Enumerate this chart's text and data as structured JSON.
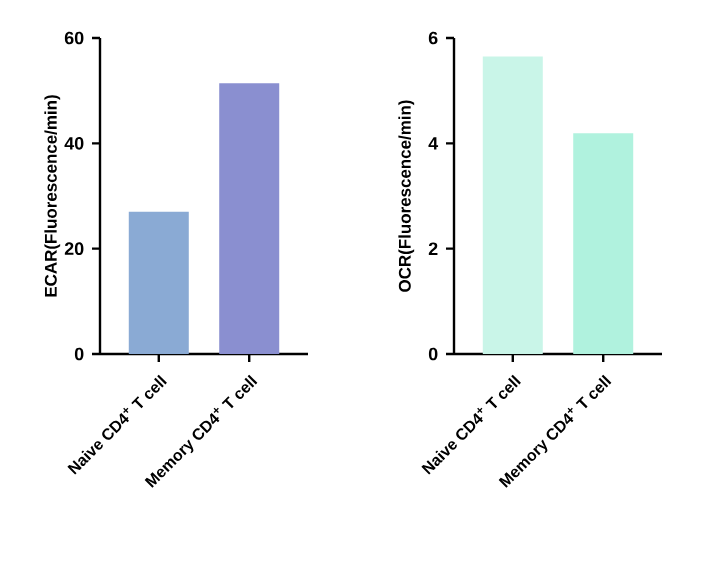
{
  "chart_data": [
    {
      "type": "bar",
      "ylabel": "ECAR(Fluorescence/min)",
      "categories": [
        "Naive CD4$^{+}$ T cell",
        "Memory CD4$^{+}$ T cell"
      ],
      "values": [
        27,
        51.4
      ],
      "colors": [
        "#8aaad4",
        "#8a8fd0"
      ],
      "ylim": [
        0,
        60
      ],
      "yticks": [
        0,
        20,
        40,
        60
      ]
    },
    {
      "type": "bar",
      "ylabel": "OCR(Fluorescence/min)",
      "categories": [
        "Naive CD4$^{+}$ T cell",
        "Memory CD4$^{+}$ T cell"
      ],
      "values": [
        5.65,
        4.19
      ],
      "colors": [
        "#c9f5e8",
        "#b0f2de"
      ],
      "ylim": [
        0,
        6
      ],
      "yticks": [
        0,
        2,
        4,
        6
      ]
    }
  ]
}
